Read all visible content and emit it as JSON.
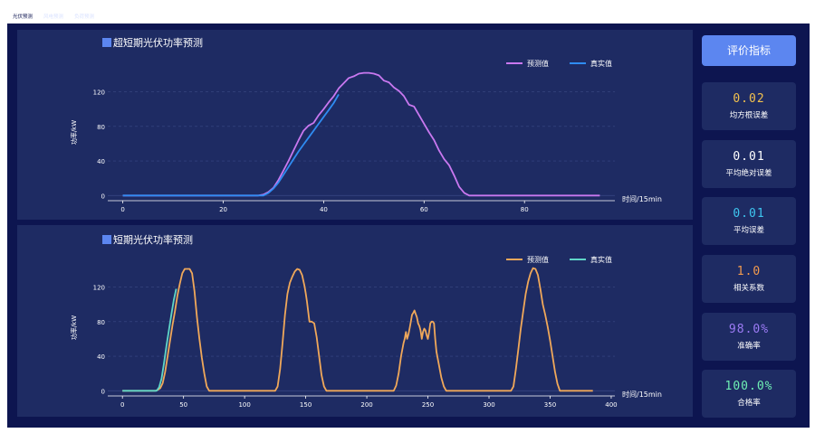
{
  "tabs": [
    {
      "label": "光伏预测",
      "active": true
    },
    {
      "label": "风电预测",
      "active": false
    },
    {
      "label": "负荷预测",
      "active": false
    }
  ],
  "sidebar": {
    "button_label": "评价指标",
    "metrics": [
      {
        "value": "0.02",
        "label": "均方根误差",
        "color": "#f2c14e"
      },
      {
        "value": "0.01",
        "label": "平均绝对误差",
        "color": "#ffffff"
      },
      {
        "value": "0.01",
        "label": "平均误差",
        "color": "#3ec6f0"
      },
      {
        "value": "1.0",
        "label": "相关系数",
        "color": "#f29a4e"
      },
      {
        "value": "98.0%",
        "label": "准确率",
        "color": "#9c7bf5"
      },
      {
        "value": "100.0%",
        "label": "合格率",
        "color": "#6ff0b4"
      }
    ]
  },
  "chart_data": [
    {
      "type": "line",
      "title": "超短期光伏功率预测",
      "xlabel": "时间/15min",
      "ylabel": "功率/kW",
      "xlim": [
        -3,
        98
      ],
      "ylim": [
        -6,
        152
      ],
      "xticks": [
        0,
        20,
        40,
        60,
        80
      ],
      "yticks": [
        0,
        40,
        80,
        120
      ],
      "grid": true,
      "legend": "top-right",
      "series": [
        {
          "name": "预测值",
          "color": "#c978f0",
          "x": [
            0,
            27,
            28,
            29,
            30,
            31,
            32,
            33,
            34,
            35,
            36,
            37,
            38,
            39,
            40,
            41,
            42,
            43,
            44,
            45,
            46,
            47,
            48,
            49,
            50,
            51,
            52,
            53,
            54,
            55,
            56,
            57,
            58,
            59,
            60,
            61,
            62,
            63,
            64,
            65,
            66,
            67,
            68,
            69,
            70,
            95
          ],
          "y": [
            0,
            0,
            1,
            4,
            9,
            18,
            29,
            40,
            52,
            64,
            75,
            81,
            84,
            93,
            100,
            108,
            115,
            124,
            130,
            136,
            138,
            141,
            142,
            142,
            141,
            139,
            133,
            131,
            125,
            121,
            115,
            105,
            103,
            93,
            83,
            73,
            64,
            52,
            42,
            35,
            23,
            10,
            3,
            0,
            0,
            0
          ]
        },
        {
          "name": "真实值",
          "color": "#2f8cf2",
          "x": [
            0,
            28,
            29,
            30,
            31,
            32,
            33,
            34,
            35,
            36,
            37,
            38,
            39,
            40,
            41,
            42,
            43
          ],
          "y": [
            0,
            0,
            3,
            8,
            15,
            24,
            33,
            42,
            51,
            59,
            67,
            75,
            83,
            91,
            99,
            107,
            117
          ]
        }
      ]
    },
    {
      "type": "line",
      "title": "短期光伏功率预测",
      "xlabel": "时间/15min",
      "ylabel": "功率/kW",
      "xlim": [
        -12,
        403
      ],
      "ylim": [
        -6,
        152
      ],
      "xticks": [
        0,
        50,
        100,
        150,
        200,
        250,
        300,
        350,
        400
      ],
      "yticks": [
        0,
        40,
        80,
        120
      ],
      "grid": true,
      "legend": "top-right",
      "series": [
        {
          "name": "预测值",
          "color": "#f0a85a",
          "x": [
            0,
            27,
            29,
            31,
            33,
            35,
            37,
            39,
            41,
            43,
            45,
            47,
            49,
            51,
            53,
            55,
            57,
            59,
            61,
            63,
            65,
            67,
            69,
            71,
            125,
            127,
            129,
            131,
            133,
            135,
            137,
            139,
            141,
            143,
            145,
            147,
            149,
            150,
            151,
            153,
            155,
            157,
            159,
            161,
            163,
            165,
            167,
            169,
            222,
            224,
            226,
            228,
            230,
            231,
            232,
            233,
            234,
            235,
            236,
            237,
            238,
            239,
            240,
            241,
            242,
            243,
            244,
            245,
            246,
            247,
            248,
            249,
            250,
            251,
            252,
            253,
            254,
            255,
            256,
            257,
            259,
            261,
            263,
            265,
            267,
            269,
            318,
            320,
            322,
            324,
            326,
            328,
            330,
            332,
            334,
            336,
            338,
            340,
            342,
            344,
            346,
            348,
            350,
            352,
            354,
            356,
            358,
            360,
            385
          ],
          "y": [
            0,
            0,
            1,
            3,
            9,
            22,
            40,
            58,
            76,
            92,
            110,
            124,
            136,
            141,
            141,
            141,
            136,
            115,
            85,
            60,
            38,
            20,
            5,
            0,
            0,
            5,
            25,
            55,
            88,
            112,
            125,
            132,
            138,
            141,
            140,
            134,
            121,
            113,
            103,
            80,
            80,
            78,
            62,
            40,
            18,
            5,
            0,
            0,
            0,
            6,
            20,
            40,
            55,
            60,
            68,
            60,
            65,
            72,
            80,
            88,
            90,
            93,
            89,
            85,
            78,
            75,
            70,
            60,
            68,
            72,
            70,
            64,
            60,
            68,
            78,
            80,
            80,
            78,
            60,
            45,
            30,
            15,
            5,
            0,
            0,
            0,
            0,
            5,
            25,
            48,
            72,
            92,
            112,
            126,
            136,
            142,
            141,
            134,
            118,
            100,
            88,
            74,
            58,
            40,
            22,
            8,
            0,
            0,
            0
          ]
        },
        {
          "name": "真实值",
          "color": "#5fd6c8",
          "x": [
            0,
            28,
            30,
            32,
            34,
            36,
            38,
            40,
            42,
            44
          ],
          "y": [
            0,
            0,
            4,
            14,
            32,
            52,
            70,
            88,
            105,
            118
          ]
        }
      ]
    }
  ]
}
